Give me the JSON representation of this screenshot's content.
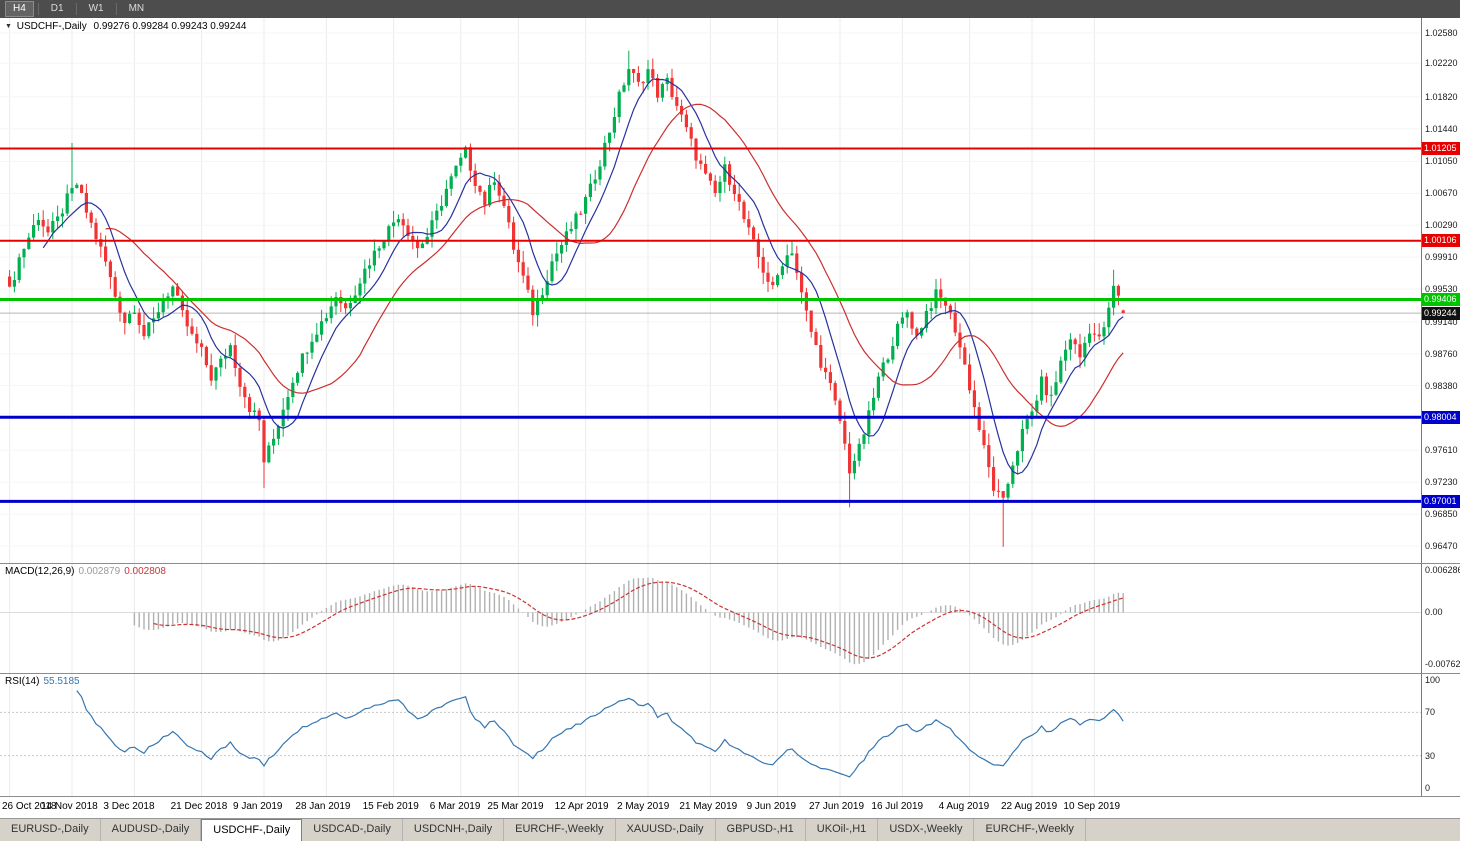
{
  "toolbar": {
    "timeframes": [
      {
        "label": "H4",
        "active": true
      },
      {
        "label": "D1",
        "active": false
      },
      {
        "label": "W1",
        "active": false
      },
      {
        "label": "MN",
        "active": false
      }
    ]
  },
  "chart": {
    "symbol_label": "USDCHF-,Daily",
    "ohlc_text": "0.99276 0.99284 0.99243 0.99244",
    "price_scale_labels": [
      "1.02580",
      "1.02220",
      "1.01820",
      "1.01440",
      "1.01050",
      "1.00670",
      "1.00290",
      "0.99910",
      "0.99530",
      "0.99140",
      "0.98760",
      "0.98380",
      "0.97610",
      "0.97230",
      "0.96850",
      "0.96470"
    ],
    "hlines": [
      {
        "label": "1.01205",
        "price": 1.01205,
        "color": "#e60000",
        "thickness": 2
      },
      {
        "label": "1.00106",
        "price": 1.00106,
        "color": "#e60000",
        "thickness": 2
      },
      {
        "label": "0.99406",
        "price": 0.99406,
        "color": "#00c400",
        "thickness": 3
      },
      {
        "label": "0.98004",
        "price": 0.98004,
        "color": "#0000cc",
        "thickness": 3
      },
      {
        "label": "0.97001",
        "price": 0.97001,
        "color": "#0000cc",
        "thickness": 3
      }
    ],
    "current_price": {
      "label": "0.99244",
      "value": 0.99244
    },
    "date_labels": [
      {
        "text": "26 Oct 2018",
        "bar": 0
      },
      {
        "text": "14 Nov 2018",
        "bar": 13
      },
      {
        "text": "3 Dec 2018",
        "bar": 26
      },
      {
        "text": "21 Dec 2018",
        "bar": 40
      },
      {
        "text": "9 Jan 2019",
        "bar": 53
      },
      {
        "text": "28 Jan 2019",
        "bar": 66
      },
      {
        "text": "15 Feb 2019",
        "bar": 80
      },
      {
        "text": "6 Mar 2019",
        "bar": 94
      },
      {
        "text": "25 Mar 2019",
        "bar": 106
      },
      {
        "text": "12 Apr 2019",
        "bar": 120
      },
      {
        "text": "2 May 2019",
        "bar": 133
      },
      {
        "text": "21 May 2019",
        "bar": 146
      },
      {
        "text": "9 Jun 2019",
        "bar": 160
      },
      {
        "text": "27 Jun 2019",
        "bar": 173
      },
      {
        "text": "16 Jul 2019",
        "bar": 186
      },
      {
        "text": "4 Aug 2019",
        "bar": 200
      },
      {
        "text": "22 Aug 2019",
        "bar": 213
      },
      {
        "text": "10 Sep 2019",
        "bar": 226
      }
    ]
  },
  "macd": {
    "label": "MACD(12,26,9)",
    "main_value": "0.002879",
    "signal_value": "0.002808",
    "scale": [
      {
        "text": "0.006286",
        "value": 0.006286
      },
      {
        "text": "0.00",
        "value": 0
      },
      {
        "text": "-0.00762",
        "value": -0.00762
      }
    ]
  },
  "rsi": {
    "label": "RSI(14)",
    "value": "55.5185",
    "scale": [
      {
        "text": "100",
        "value": 100
      },
      {
        "text": "70",
        "value": 70
      },
      {
        "text": "30",
        "value": 30
      },
      {
        "text": "0",
        "value": 0
      }
    ],
    "levels": [
      70,
      30
    ]
  },
  "tabs": [
    {
      "label": "EURUSD-,Daily",
      "active": false
    },
    {
      "label": "AUDUSD-,Daily",
      "active": false
    },
    {
      "label": "USDCHF-,Daily",
      "active": true
    },
    {
      "label": "USDCAD-,Daily",
      "active": false
    },
    {
      "label": "USDCNH-,Daily",
      "active": false
    },
    {
      "label": "EURCHF-,Weekly",
      "active": false
    },
    {
      "label": "XAUUSD-,Daily",
      "active": false
    },
    {
      "label": "GBPUSD-,H1",
      "active": false
    },
    {
      "label": "UKOil-,H1",
      "active": false
    },
    {
      "label": "USDX-,Weekly",
      "active": false
    },
    {
      "label": "EURCHF-,Weekly",
      "active": false
    }
  ],
  "colors": {
    "bull": "#00b050",
    "bear": "#f13333",
    "ma_fast": "#26339e",
    "ma_slow": "#cc2f2f",
    "macd_hist": "#b0b0b0",
    "macd_signal": "#cc3333",
    "rsi_line": "#3576b0",
    "grid_v": "#ebebeb",
    "grid_h": "#f5f5f5",
    "current_price_line": "#b6b6b6",
    "current_price_badge": "#111111"
  },
  "chart_data": {
    "type": "candlestick",
    "symbol": "USDCHF",
    "timeframe": "Daily",
    "title": "USDCHF-,Daily",
    "x_range_dates": [
      "26 Oct 2018",
      "20 Sep 2019"
    ],
    "y_range": [
      0.9647,
      1.0258
    ],
    "bars": 233,
    "current_close": 0.99244,
    "noise_amp": 0.0007,
    "wick_amp": 0.0014,
    "close_anchors": [
      [
        0,
        0.995
      ],
      [
        2,
        0.999
      ],
      [
        4,
        1.0015
      ],
      [
        6,
        1.004
      ],
      [
        8,
        1.002
      ],
      [
        10,
        1.0035
      ],
      [
        12,
        1.006
      ],
      [
        14,
        1.0078
      ],
      [
        16,
        1.0045
      ],
      [
        18,
        1.0015
      ],
      [
        20,
        0.9985
      ],
      [
        22,
        0.9945
      ],
      [
        24,
        0.9915
      ],
      [
        26,
        0.9932
      ],
      [
        28,
        0.9898
      ],
      [
        30,
        0.9915
      ],
      [
        32,
        0.9942
      ],
      [
        34,
        0.9955
      ],
      [
        36,
        0.9922
      ],
      [
        38,
        0.9896
      ],
      [
        40,
        0.9878
      ],
      [
        42,
        0.9848
      ],
      [
        44,
        0.9866
      ],
      [
        46,
        0.9886
      ],
      [
        48,
        0.9842
      ],
      [
        50,
        0.9812
      ],
      [
        52,
        0.9796
      ],
      [
        53,
        0.9748
      ],
      [
        55,
        0.9775
      ],
      [
        57,
        0.9812
      ],
      [
        59,
        0.9846
      ],
      [
        61,
        0.9872
      ],
      [
        63,
        0.9896
      ],
      [
        66,
        0.9922
      ],
      [
        68,
        0.9946
      ],
      [
        70,
        0.993
      ],
      [
        72,
        0.9952
      ],
      [
        74,
        0.9976
      ],
      [
        76,
        0.9996
      ],
      [
        78,
        1.0016
      ],
      [
        81,
        1.0042
      ],
      [
        83,
        1.0022
      ],
      [
        85,
        1.0002
      ],
      [
        87,
        1.0016
      ],
      [
        89,
        1.0042
      ],
      [
        91,
        1.0072
      ],
      [
        93,
        1.0096
      ],
      [
        95,
        1.0116
      ],
      [
        97,
        1.0082
      ],
      [
        99,
        1.0056
      ],
      [
        101,
        1.0086
      ],
      [
        103,
        1.0052
      ],
      [
        105,
        1.0002
      ],
      [
        107,
        0.9966
      ],
      [
        109,
        0.9926
      ],
      [
        111,
        0.9952
      ],
      [
        113,
        0.9986
      ],
      [
        115,
        1.0006
      ],
      [
        117,
        1.0026
      ],
      [
        119,
        1.0046
      ],
      [
        121,
        1.0072
      ],
      [
        123,
        1.0106
      ],
      [
        125,
        1.0142
      ],
      [
        127,
        1.0182
      ],
      [
        129,
        1.0216
      ],
      [
        131,
        1.0196
      ],
      [
        133,
        1.0214
      ],
      [
        135,
        1.0186
      ],
      [
        137,
        1.02
      ],
      [
        139,
        1.0172
      ],
      [
        141,
        1.0142
      ],
      [
        143,
        1.0112
      ],
      [
        145,
        1.0086
      ],
      [
        147,
        1.0066
      ],
      [
        149,
        1.0096
      ],
      [
        151,
        1.0072
      ],
      [
        153,
        1.0036
      ],
      [
        155,
        1.0006
      ],
      [
        157,
        0.9976
      ],
      [
        159,
        0.9952
      ],
      [
        161,
        0.9986
      ],
      [
        163,
        1.0
      ],
      [
        165,
        0.9946
      ],
      [
        167,
        0.9902
      ],
      [
        169,
        0.9866
      ],
      [
        171,
        0.9836
      ],
      [
        173,
        0.9796
      ],
      [
        175,
        0.9738
      ],
      [
        177,
        0.9762
      ],
      [
        179,
        0.9802
      ],
      [
        181,
        0.9846
      ],
      [
        183,
        0.9876
      ],
      [
        185,
        0.9906
      ],
      [
        187,
        0.9926
      ],
      [
        189,
        0.9896
      ],
      [
        191,
        0.9926
      ],
      [
        193,
        0.9946
      ],
      [
        195,
        0.9936
      ],
      [
        197,
        0.9906
      ],
      [
        199,
        0.9862
      ],
      [
        201,
        0.9812
      ],
      [
        203,
        0.9762
      ],
      [
        205,
        0.9716
      ],
      [
        207,
        0.9698
      ],
      [
        209,
        0.9746
      ],
      [
        211,
        0.9782
      ],
      [
        213,
        0.9806
      ],
      [
        215,
        0.9842
      ],
      [
        217,
        0.9822
      ],
      [
        219,
        0.9866
      ],
      [
        221,
        0.9896
      ],
      [
        223,
        0.9872
      ],
      [
        225,
        0.9906
      ],
      [
        227,
        0.9892
      ],
      [
        229,
        0.9926
      ],
      [
        230,
        0.9956
      ],
      [
        231,
        0.9942
      ],
      [
        232,
        0.9924
      ]
    ],
    "wick_overrides": [
      {
        "i": 13,
        "high": 1.0127
      },
      {
        "i": 53,
        "low": 0.9716
      },
      {
        "i": 95,
        "high": 1.0124
      },
      {
        "i": 129,
        "high": 1.0237
      },
      {
        "i": 133,
        "high": 1.0226
      },
      {
        "i": 163,
        "high": 1.001
      },
      {
        "i": 175,
        "low": 0.9693
      },
      {
        "i": 207,
        "low": 0.9646
      },
      {
        "i": 230,
        "high": 0.9976
      },
      {
        "i": 232,
        "open": 0.99276,
        "high": 0.99284,
        "low": 0.99243
      }
    ],
    "indicators": {
      "ma_fast_period": 8,
      "ma_slow_period": 21,
      "macd": [
        12,
        26,
        9
      ],
      "rsi": 14
    }
  }
}
